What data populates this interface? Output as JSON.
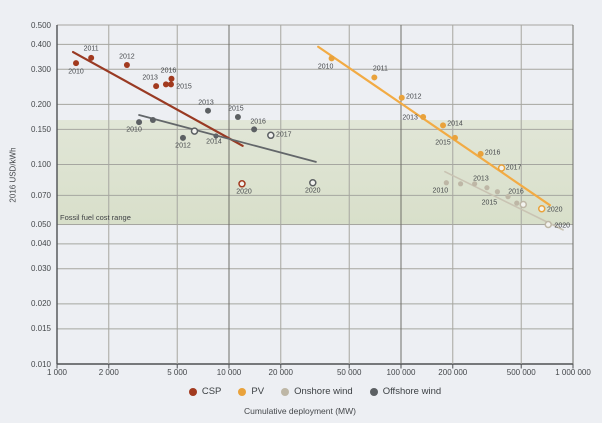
{
  "page": {
    "background": "#edeff3"
  },
  "chart_data": {
    "type": "scatter",
    "title": "",
    "xlabel": "Cumulative deployment (MW)",
    "ylabel": "2016 USD/kWh",
    "x_scale": "log",
    "y_scale": "log",
    "xlim": [
      1000,
      1000000
    ],
    "ylim": [
      0.01,
      0.5
    ],
    "grid": true,
    "legend_position": "bottom",
    "x_ticks": [
      {
        "v": 1000,
        "label": "1 000",
        "major": true
      },
      {
        "v": 2000,
        "label": "2 000",
        "major": false
      },
      {
        "v": 5000,
        "label": "5 000",
        "major": false
      },
      {
        "v": 10000,
        "label": "10 000",
        "major": true
      },
      {
        "v": 20000,
        "label": "20 000",
        "major": false
      },
      {
        "v": 50000,
        "label": "50 000",
        "major": false
      },
      {
        "v": 100000,
        "label": "100 000",
        "major": true
      },
      {
        "v": 200000,
        "label": "200 000",
        "major": false
      },
      {
        "v": 500000,
        "label": "500 000",
        "major": false
      },
      {
        "v": 1000000,
        "label": "1 000 000",
        "major": true
      }
    ],
    "y_ticks": [
      {
        "v": 0.5,
        "label": "0.500"
      },
      {
        "v": 0.4,
        "label": "0.400"
      },
      {
        "v": 0.3,
        "label": "0.300"
      },
      {
        "v": 0.2,
        "label": "0.200"
      },
      {
        "v": 0.15,
        "label": "0.150"
      },
      {
        "v": 0.1,
        "label": "0.100"
      },
      {
        "v": 0.07,
        "label": "0.070"
      },
      {
        "v": 0.05,
        "label": "0.050"
      },
      {
        "v": 0.04,
        "label": "0.040"
      },
      {
        "v": 0.03,
        "label": "0.030"
      },
      {
        "v": 0.02,
        "label": "0.020"
      },
      {
        "v": 0.015,
        "label": "0.015"
      },
      {
        "v": 0.01,
        "label": "0.010"
      }
    ],
    "band": {
      "label": "Fossil fuel cost range",
      "from": 0.0497,
      "to": 0.167,
      "color_top": "#e1e6d7",
      "color_bottom": "#d8dfca"
    },
    "series": [
      {
        "name": "CSP",
        "color": "#a23a1f",
        "line_color": "#993a23",
        "line_width": 2.2,
        "trend": [
          [
            1240,
            0.366
          ],
          [
            12000,
            0.124
          ]
        ],
        "points": [
          {
            "year": "2010",
            "x": 1290,
            "y": 0.322,
            "dx": 0,
            "dy": 9
          },
          {
            "year": "2011",
            "x": 1580,
            "y": 0.342,
            "dx": 0,
            "dy": -9
          },
          {
            "year": "2012",
            "x": 2550,
            "y": 0.315,
            "dx": 0,
            "dy": -8
          },
          {
            "year": "2013",
            "x": 3770,
            "y": 0.247,
            "dx": -6,
            "dy": -8
          },
          {
            "year": "",
            "x": 4300,
            "y": 0.252
          },
          {
            "year": "2015",
            "x": 4600,
            "y": 0.252,
            "dx": 13,
            "dy": 3
          },
          {
            "year": "2016",
            "x": 4630,
            "y": 0.269,
            "dx": -3,
            "dy": -8
          },
          {
            "year": "2020",
            "x": 11900,
            "y": 0.08,
            "dx": 2,
            "dy": 8,
            "hollow": true
          }
        ]
      },
      {
        "name": "PV",
        "color": "#e9a23b",
        "line_color": "#f2ab44",
        "line_width": 2.2,
        "trend": [
          [
            33000,
            0.389
          ],
          [
            734000,
            0.0625
          ]
        ],
        "points": [
          {
            "year": "2010",
            "x": 39500,
            "y": 0.34,
            "dx": -6,
            "dy": 9
          },
          {
            "year": "2011",
            "x": 70000,
            "y": 0.273,
            "dx": 6,
            "dy": -8
          },
          {
            "year": "2012",
            "x": 101000,
            "y": 0.216,
            "dx": 12,
            "dy": -1
          },
          {
            "year": "2013",
            "x": 134500,
            "y": 0.173,
            "dx": -13,
            "dy": 1
          },
          {
            "year": "2014",
            "x": 175500,
            "y": 0.157,
            "dx": 12,
            "dy": -1
          },
          {
            "year": "2015",
            "x": 206000,
            "y": 0.136,
            "dx": -12,
            "dy": 5
          },
          {
            "year": "2016",
            "x": 290500,
            "y": 0.113,
            "dx": 12,
            "dy": -1
          },
          {
            "year": "2017",
            "x": 384500,
            "y": 0.096,
            "dx": 12,
            "dy": 0,
            "hollow": true
          },
          {
            "year": "2020",
            "x": 658000,
            "y": 0.06,
            "dx": 13,
            "dy": 1,
            "hollow": true
          }
        ]
      },
      {
        "name": "Onshore wind",
        "color": "#beb7a6",
        "line_color": "#c9c3b3",
        "line_width": 1.6,
        "trend": [
          [
            180000,
            0.092
          ],
          [
            875000,
            0.047
          ]
        ],
        "points": [
          {
            "year": "2010",
            "x": 183500,
            "y": 0.081,
            "dx": -6,
            "dy": 8
          },
          {
            "year": "",
            "x": 222000,
            "y": 0.08
          },
          {
            "year": "",
            "x": 268000,
            "y": 0.08
          },
          {
            "year": "2013",
            "x": 316000,
            "y": 0.0765,
            "dx": -6,
            "dy": -9
          },
          {
            "year": "2015",
            "x": 363500,
            "y": 0.073,
            "dx": -8,
            "dy": 11
          },
          {
            "year": "2016",
            "x": 419000,
            "y": 0.069,
            "dx": 8,
            "dy": -5
          },
          {
            "year": "",
            "x": 471000,
            "y": 0.064
          },
          {
            "year": "",
            "x": 514000,
            "y": 0.063,
            "hollow": true
          },
          {
            "year": "2020",
            "x": 718000,
            "y": 0.05,
            "dx": 14,
            "dy": 1,
            "hollow": true
          }
        ]
      },
      {
        "name": "Offshore wind",
        "color": "#5c6063",
        "line_color": "#63676a",
        "line_width": 1.8,
        "trend": [
          [
            3000,
            0.177
          ],
          [
            32000,
            0.103
          ]
        ],
        "points": [
          {
            "year": "2010",
            "x": 3000,
            "y": 0.163,
            "dx": -5,
            "dy": 8
          },
          {
            "year": "",
            "x": 3610,
            "y": 0.167
          },
          {
            "year": "2012",
            "x": 5400,
            "y": 0.136,
            "dx": 0,
            "dy": 8
          },
          {
            "year": "",
            "x": 6300,
            "y": 0.147,
            "hollow": true
          },
          {
            "year": "2013",
            "x": 7550,
            "y": 0.186,
            "dx": -2,
            "dy": -8
          },
          {
            "year": "2014",
            "x": 8400,
            "y": 0.139,
            "dx": -2,
            "dy": 6,
            "behind": true
          },
          {
            "year": "2015",
            "x": 11270,
            "y": 0.173,
            "dx": -2,
            "dy": -8
          },
          {
            "year": "2016",
            "x": 14000,
            "y": 0.15,
            "dx": 4,
            "dy": -7
          },
          {
            "year": "2017",
            "x": 17500,
            "y": 0.14,
            "dx": 13,
            "dy": 0,
            "hollow": true
          },
          {
            "year": "2020",
            "x": 30700,
            "y": 0.081,
            "dx": 0,
            "dy": 8,
            "hollow": true
          }
        ]
      }
    ]
  }
}
